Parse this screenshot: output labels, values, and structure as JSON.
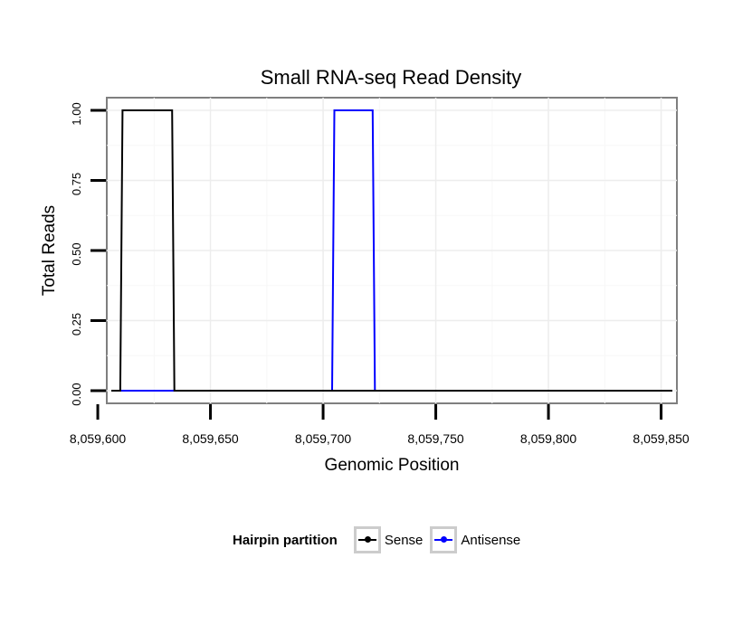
{
  "chart_data": {
    "type": "line",
    "title": "Small RNA-seq Read Density",
    "xlabel": "Genomic Position",
    "ylabel": "Total Reads",
    "xlim": [
      8059604,
      8059857
    ],
    "ylim": [
      -0.045,
      1.045
    ],
    "x_ticks": [
      8059600,
      8059650,
      8059700,
      8059750,
      8059800,
      8059850
    ],
    "x_tick_labels": [
      "8,059,600",
      "8,059,650",
      "8,059,700",
      "8,059,750",
      "8,059,800",
      "8,059,850"
    ],
    "y_ticks": [
      0,
      0.25,
      0.5,
      0.75,
      1.0
    ],
    "y_tick_labels": [
      "0.00",
      "0.25",
      "0.50",
      "0.75",
      "1.00"
    ],
    "grid": true,
    "legend": {
      "title": "Hairpin partition",
      "position": "bottom"
    },
    "series": [
      {
        "name": "Sense",
        "color": "#000000",
        "x": [
          8059606,
          8059610,
          8059611,
          8059633,
          8059634,
          8059855
        ],
        "y": [
          0,
          0,
          1,
          1,
          0,
          0
        ]
      },
      {
        "name": "Antisense",
        "color": "#0000ff",
        "x": [
          8059610,
          8059704,
          8059705,
          8059722,
          8059723,
          8059855
        ],
        "y": [
          0,
          0,
          1,
          1,
          0,
          0
        ]
      }
    ]
  }
}
